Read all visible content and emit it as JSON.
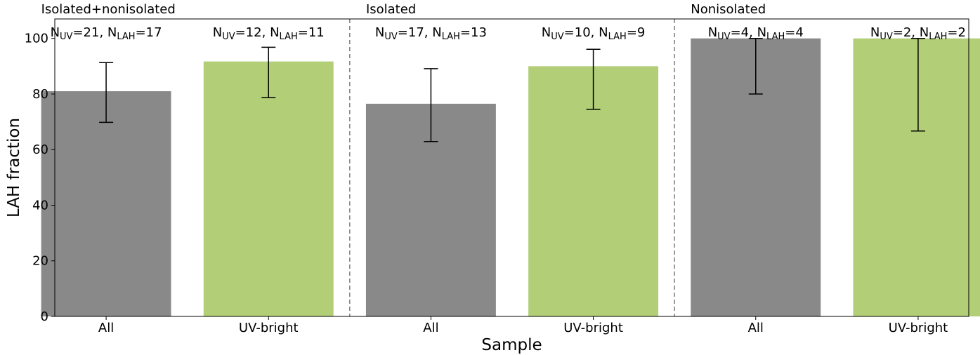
{
  "chart_data": {
    "type": "bar",
    "title": "",
    "xlabel": "Sample",
    "ylabel": "LAH fraction",
    "ylim": [
      0,
      107
    ],
    "yticks": [
      0,
      20,
      40,
      60,
      80,
      100
    ],
    "grid": false,
    "colors": {
      "All": "#898989",
      "UV-bright": "#b2cf78"
    },
    "groups": [
      {
        "label": "Isolated+nonisolated",
        "bars": [
          {
            "category": "All",
            "value": 81.0,
            "err_low": 69.8,
            "err_high": 91.3,
            "n_label": {
              "a_base": "N",
              "a_sub": "UV",
              "a_val": "=21",
              "sep": ", ",
              "b_base": "N",
              "b_sub": "LAH",
              "b_val": "=17"
            }
          },
          {
            "category": "UV-bright",
            "value": 91.7,
            "err_low": 78.7,
            "err_high": 96.8,
            "n_label": {
              "a_base": "N",
              "a_sub": "UV",
              "a_val": "=12",
              "sep": ", ",
              "b_base": "N",
              "b_sub": "LAH",
              "b_val": "=11"
            }
          }
        ]
      },
      {
        "label": "Isolated",
        "bars": [
          {
            "category": "All",
            "value": 76.5,
            "err_low": 62.9,
            "err_high": 89.1,
            "n_label": {
              "a_base": "N",
              "a_sub": "UV",
              "a_val": "=17",
              "sep": ", ",
              "b_base": "N",
              "b_sub": "LAH",
              "b_val": "=13"
            }
          },
          {
            "category": "UV-bright",
            "value": 90.0,
            "err_low": 74.5,
            "err_high": 96.1,
            "n_label": {
              "a_base": "N",
              "a_sub": "UV",
              "a_val": "=10",
              "sep": ", ",
              "b_base": "N",
              "b_sub": "LAH",
              "b_val": "=9"
            }
          }
        ]
      },
      {
        "label": "Nonisolated",
        "bars": [
          {
            "category": "All",
            "value": 100.0,
            "err_low": 80.0,
            "err_high": 100.0,
            "n_label": {
              "a_base": "N",
              "a_sub": "UV",
              "a_val": "=4",
              "sep": ", ",
              "b_base": "N",
              "b_sub": "LAH",
              "b_val": "=4"
            }
          },
          {
            "category": "UV-bright",
            "value": 100.0,
            "err_low": 66.7,
            "err_high": 100.0,
            "n_label": {
              "a_base": "N",
              "a_sub": "UV",
              "a_val": "=2",
              "sep": ", ",
              "b_base": "N",
              "b_sub": "LAH",
              "b_val": "=2"
            }
          }
        ]
      }
    ]
  }
}
